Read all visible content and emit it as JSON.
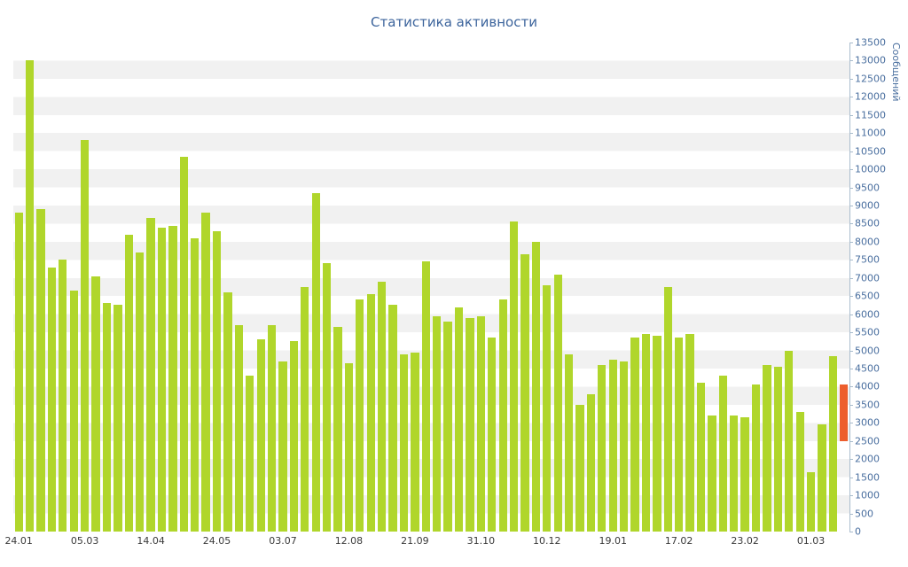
{
  "title": "Статистика активности",
  "y_axis": {
    "title": "Сообщений",
    "ticks": [
      0,
      500,
      1000,
      1500,
      2000,
      2500,
      3000,
      3500,
      4000,
      4500,
      5000,
      5500,
      6000,
      6500,
      7000,
      7500,
      8000,
      8500,
      9000,
      9500,
      10000,
      10500,
      11000,
      11500,
      12000,
      12500,
      13000,
      13500
    ]
  },
  "x_axis": {
    "labels": [
      "24.01",
      "05.03",
      "14.04",
      "24.05",
      "03.07",
      "12.08",
      "21.09",
      "31.10",
      "10.12",
      "19.01",
      "17.02",
      "23.02",
      "01.03"
    ],
    "label_bar_indices": [
      0,
      6,
      12,
      18,
      24,
      30,
      36,
      42,
      48,
      54,
      60,
      66,
      72
    ]
  },
  "chart_data": {
    "type": "bar",
    "title": "Статистика активности",
    "xlabel": "",
    "ylabel": "Сообщений",
    "ylim": [
      0,
      13500
    ],
    "y_tick_step": 500,
    "grid": "alternating-horizontal-bands",
    "legend": "none",
    "bar_color": "#b0d62b",
    "highlight_color": "#ed5e2d",
    "band_color": "#f1f1f1",
    "x_tick_labels": [
      "24.01",
      "05.03",
      "14.04",
      "24.05",
      "03.07",
      "12.08",
      "21.09",
      "31.10",
      "10.12",
      "19.01",
      "17.02",
      "23.02",
      "01.03"
    ],
    "x_tick_bar_indices": [
      0,
      6,
      12,
      18,
      24,
      30,
      36,
      42,
      48,
      54,
      60,
      66,
      72
    ],
    "values": [
      8800,
      13000,
      8900,
      7300,
      7500,
      6650,
      10800,
      7050,
      6300,
      6250,
      8200,
      7700,
      8650,
      8400,
      8450,
      10350,
      8100,
      8800,
      8300,
      6600,
      5700,
      4300,
      5300,
      5700,
      4700,
      5250,
      6750,
      9350,
      7400,
      5650,
      4650,
      6400,
      6550,
      6900,
      6250,
      4900,
      4950,
      7450,
      5950,
      5800,
      6200,
      5900,
      5950,
      5350,
      6400,
      8550,
      7650,
      8000,
      6800,
      7100,
      4900,
      3500,
      3800,
      4600,
      4750,
      4700,
      5350,
      5450,
      5400,
      6750,
      5350,
      5450,
      4100,
      3200,
      4300,
      3200,
      3150,
      4050,
      4600,
      4550,
      5000,
      3300,
      1650,
      2950,
      4850
    ],
    "highlight_bar": {
      "start": 2500,
      "end": 4050,
      "color": "#ed5e2d"
    }
  }
}
